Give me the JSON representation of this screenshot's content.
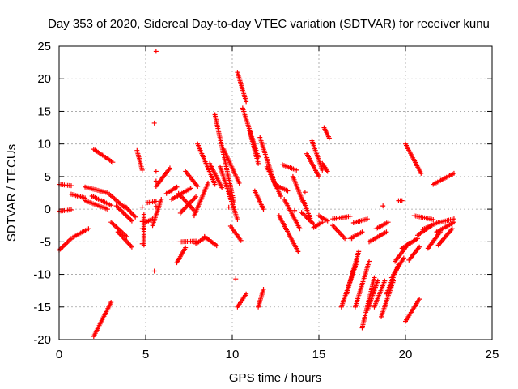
{
  "chart_data": {
    "type": "scatter",
    "title": "Day 353 of 2020, Sidereal Day-to-day VTEC variation (SDTVAR) for receiver kunu",
    "xlabel": "GPS time / hours",
    "ylabel": "SDTVAR / TECUs",
    "xlim": [
      0,
      25
    ],
    "ylim": [
      -20,
      25
    ],
    "xticks": [
      "0",
      "5",
      "10",
      "15",
      "20",
      "25"
    ],
    "yticks": [
      "-20",
      "-15",
      "-10",
      "-5",
      "0",
      "5",
      "10",
      "15",
      "20",
      "25"
    ],
    "grid": true,
    "marker": "+",
    "color": "#ff0000",
    "segments": [
      [
        [
          0.0,
          3.8
        ],
        [
          0.7,
          3.6
        ]
      ],
      [
        [
          0.0,
          -6.3
        ],
        [
          0.7,
          -4.5
        ]
      ],
      [
        [
          0.0,
          -0.3
        ],
        [
          0.7,
          -0.1
        ]
      ],
      [
        [
          0.7,
          2.3
        ],
        [
          1.5,
          1.7
        ]
      ],
      [
        [
          0.8,
          -4.3
        ],
        [
          1.7,
          -3.0
        ]
      ],
      [
        [
          1.5,
          3.4
        ],
        [
          2.8,
          2.5
        ]
      ],
      [
        [
          1.5,
          1.3
        ],
        [
          2.8,
          0.0
        ]
      ],
      [
        [
          2.0,
          9.2
        ],
        [
          3.1,
          7.2
        ]
      ],
      [
        [
          1.9,
          2.0
        ],
        [
          3.0,
          0.6
        ]
      ],
      [
        [
          2.0,
          -19.5
        ],
        [
          3.0,
          -14.3
        ]
      ],
      [
        [
          2.9,
          2.3
        ],
        [
          3.8,
          0.2
        ]
      ],
      [
        [
          3.0,
          -2.0
        ],
        [
          3.9,
          -4.2
        ]
      ],
      [
        [
          3.3,
          0.5
        ],
        [
          4.2,
          -1.8
        ]
      ],
      [
        [
          3.4,
          -3.5
        ],
        [
          4.2,
          -5.8
        ]
      ],
      [
        [
          3.8,
          0.5
        ],
        [
          4.4,
          -1.2
        ]
      ],
      [
        [
          4.5,
          9.0
        ],
        [
          4.8,
          6.0
        ]
      ],
      [
        [
          4.9,
          -0.8
        ],
        [
          4.9,
          -5.5
        ]
      ],
      [
        [
          5.0,
          -2.0
        ],
        [
          5.4,
          -1.5
        ]
      ],
      [
        [
          5.1,
          1.0
        ],
        [
          5.6,
          1.2
        ]
      ],
      [
        [
          5.4,
          -2.5
        ],
        [
          5.9,
          1.5
        ]
      ],
      [
        [
          5.6,
          3.5
        ],
        [
          6.4,
          6.3
        ]
      ],
      [
        [
          6.2,
          2.4
        ],
        [
          6.8,
          3.4
        ]
      ],
      [
        [
          6.5,
          1.5
        ],
        [
          7.6,
          3.2
        ]
      ],
      [
        [
          6.8,
          -8.2
        ],
        [
          7.3,
          -5.9
        ]
      ],
      [
        [
          6.9,
          2.4
        ],
        [
          7.8,
          -0.2
        ]
      ],
      [
        [
          7.0,
          -5.0
        ],
        [
          7.9,
          -4.9
        ]
      ],
      [
        [
          7.0,
          -0.6
        ],
        [
          7.9,
          1.9
        ]
      ],
      [
        [
          7.3,
          5.8
        ],
        [
          8.0,
          3.5
        ]
      ],
      [
        [
          7.8,
          -1.0
        ],
        [
          8.6,
          4.0
        ]
      ],
      [
        [
          7.9,
          -5.3
        ],
        [
          8.4,
          -4.4
        ]
      ],
      [
        [
          8.0,
          10.0
        ],
        [
          9.0,
          3.8
        ]
      ],
      [
        [
          8.4,
          -4.2
        ],
        [
          9.1,
          -5.6
        ]
      ],
      [
        [
          8.7,
          7.0
        ],
        [
          9.4,
          3.3
        ]
      ],
      [
        [
          9.0,
          14.5
        ],
        [
          10.1,
          1.0
        ]
      ],
      [
        [
          9.3,
          6.5
        ],
        [
          10.3,
          -1.6
        ]
      ],
      [
        [
          9.5,
          9.2
        ],
        [
          10.4,
          4.0
        ]
      ],
      [
        [
          9.9,
          -2.6
        ],
        [
          10.5,
          -4.8
        ]
      ],
      [
        [
          10.3,
          21.0
        ],
        [
          10.8,
          16.5
        ]
      ],
      [
        [
          10.6,
          15.5
        ],
        [
          11.5,
          8.0
        ]
      ],
      [
        [
          10.3,
          -15.0
        ],
        [
          10.8,
          -13.0
        ]
      ],
      [
        [
          11.0,
          12.0
        ],
        [
          11.5,
          7.0
        ]
      ],
      [
        [
          11.3,
          2.8
        ],
        [
          11.8,
          0.0
        ]
      ],
      [
        [
          11.5,
          -15.0
        ],
        [
          11.8,
          -12.3
        ]
      ],
      [
        [
          11.6,
          11.0
        ],
        [
          12.5,
          3.5
        ]
      ],
      [
        [
          12.0,
          6.5
        ],
        [
          12.8,
          2.0
        ]
      ],
      [
        [
          12.5,
          3.7
        ],
        [
          13.2,
          2.8
        ]
      ],
      [
        [
          12.7,
          -1.0
        ],
        [
          13.8,
          -6.5
        ]
      ],
      [
        [
          12.9,
          6.8
        ],
        [
          13.7,
          6.0
        ]
      ],
      [
        [
          13.0,
          1.5
        ],
        [
          13.9,
          -3.0
        ]
      ],
      [
        [
          13.5,
          5.0
        ],
        [
          14.1,
          1.0
        ]
      ],
      [
        [
          14.0,
          -0.5
        ],
        [
          14.7,
          -2.3
        ]
      ],
      [
        [
          14.1,
          1.3
        ],
        [
          14.5,
          -1.4
        ]
      ],
      [
        [
          14.3,
          8.5
        ],
        [
          15.0,
          5.0
        ]
      ],
      [
        [
          14.6,
          10.5
        ],
        [
          15.2,
          6.0
        ]
      ],
      [
        [
          14.7,
          -2.8
        ],
        [
          15.2,
          -2.0
        ]
      ],
      [
        [
          15.0,
          -1.0
        ],
        [
          15.5,
          -1.8
        ]
      ],
      [
        [
          15.3,
          12.5
        ],
        [
          15.6,
          10.9
        ]
      ],
      [
        [
          15.2,
          7.0
        ],
        [
          15.5,
          5.8
        ]
      ],
      [
        [
          15.8,
          -2.5
        ],
        [
          16.5,
          -4.5
        ]
      ],
      [
        [
          15.8,
          -1.5
        ],
        [
          16.8,
          -1.1
        ]
      ],
      [
        [
          16.3,
          -15.0
        ],
        [
          17.2,
          -8.0
        ]
      ],
      [
        [
          16.6,
          -13.0
        ],
        [
          17.3,
          -6.5
        ]
      ],
      [
        [
          16.8,
          -4.5
        ],
        [
          17.5,
          -3.5
        ]
      ],
      [
        [
          17.0,
          -2.1
        ],
        [
          17.8,
          -1.5
        ]
      ],
      [
        [
          17.1,
          -15.0
        ],
        [
          17.9,
          -8.0
        ]
      ],
      [
        [
          17.5,
          -18.2
        ],
        [
          18.2,
          -10.5
        ]
      ],
      [
        [
          17.8,
          -15.5
        ],
        [
          18.4,
          -11.0
        ]
      ],
      [
        [
          17.9,
          -5.0
        ],
        [
          18.9,
          -3.5
        ]
      ],
      [
        [
          18.2,
          -15.0
        ],
        [
          18.8,
          -11.0
        ]
      ],
      [
        [
          18.3,
          -3.0
        ],
        [
          19.0,
          -2.0
        ]
      ],
      [
        [
          18.6,
          -16.5
        ],
        [
          19.3,
          -11.0
        ]
      ],
      [
        [
          18.9,
          -13.0
        ],
        [
          19.6,
          -8.5
        ]
      ],
      [
        [
          19.2,
          -10.5
        ],
        [
          19.9,
          -7.5
        ]
      ],
      [
        [
          19.4,
          -8.0
        ],
        [
          20.2,
          -5.2
        ]
      ],
      [
        [
          19.8,
          -6.0
        ],
        [
          20.7,
          -4.5
        ]
      ],
      [
        [
          19.6,
          1.3
        ],
        [
          19.8,
          1.3
        ]
      ],
      [
        [
          20.0,
          10.0
        ],
        [
          20.9,
          5.5
        ]
      ],
      [
        [
          20.2,
          -7.8
        ],
        [
          20.8,
          -5.8
        ]
      ],
      [
        [
          20.7,
          -4.0
        ],
        [
          21.5,
          -2.5
        ]
      ],
      [
        [
          20.0,
          -17.2
        ],
        [
          20.8,
          -13.8
        ]
      ],
      [
        [
          20.5,
          -1.0
        ],
        [
          21.6,
          -1.6
        ]
      ],
      [
        [
          21.0,
          -3.1
        ],
        [
          21.9,
          -2.0
        ]
      ],
      [
        [
          21.3,
          -6.0
        ],
        [
          22.0,
          -3.5
        ]
      ],
      [
        [
          21.9,
          -5.5
        ],
        [
          22.7,
          -3.0
        ]
      ],
      [
        [
          22.0,
          -2.0
        ],
        [
          22.8,
          -1.5
        ]
      ],
      [
        [
          21.6,
          3.8
        ],
        [
          22.8,
          5.5
        ]
      ],
      [
        [
          21.8,
          -3.5
        ],
        [
          22.8,
          -2.0
        ]
      ]
    ],
    "isolated_points": [
      [
        5.6,
        24.2
      ],
      [
        5.5,
        13.2
      ],
      [
        5.6,
        5.8
      ],
      [
        5.6,
        4.3
      ],
      [
        5.6,
        0.4
      ],
      [
        5.5,
        -9.5
      ],
      [
        4.8,
        0.3
      ],
      [
        4.8,
        -1.9
      ],
      [
        4.8,
        -3.0
      ],
      [
        4.8,
        -5.3
      ],
      [
        10.2,
        -10.7
      ],
      [
        16.9,
        -4.5
      ],
      [
        18.7,
        0.5
      ],
      [
        9.8,
        0.3
      ],
      [
        14.2,
        2.6
      ],
      [
        13.6,
        -0.2
      ],
      [
        6.7,
        3.2
      ]
    ]
  }
}
